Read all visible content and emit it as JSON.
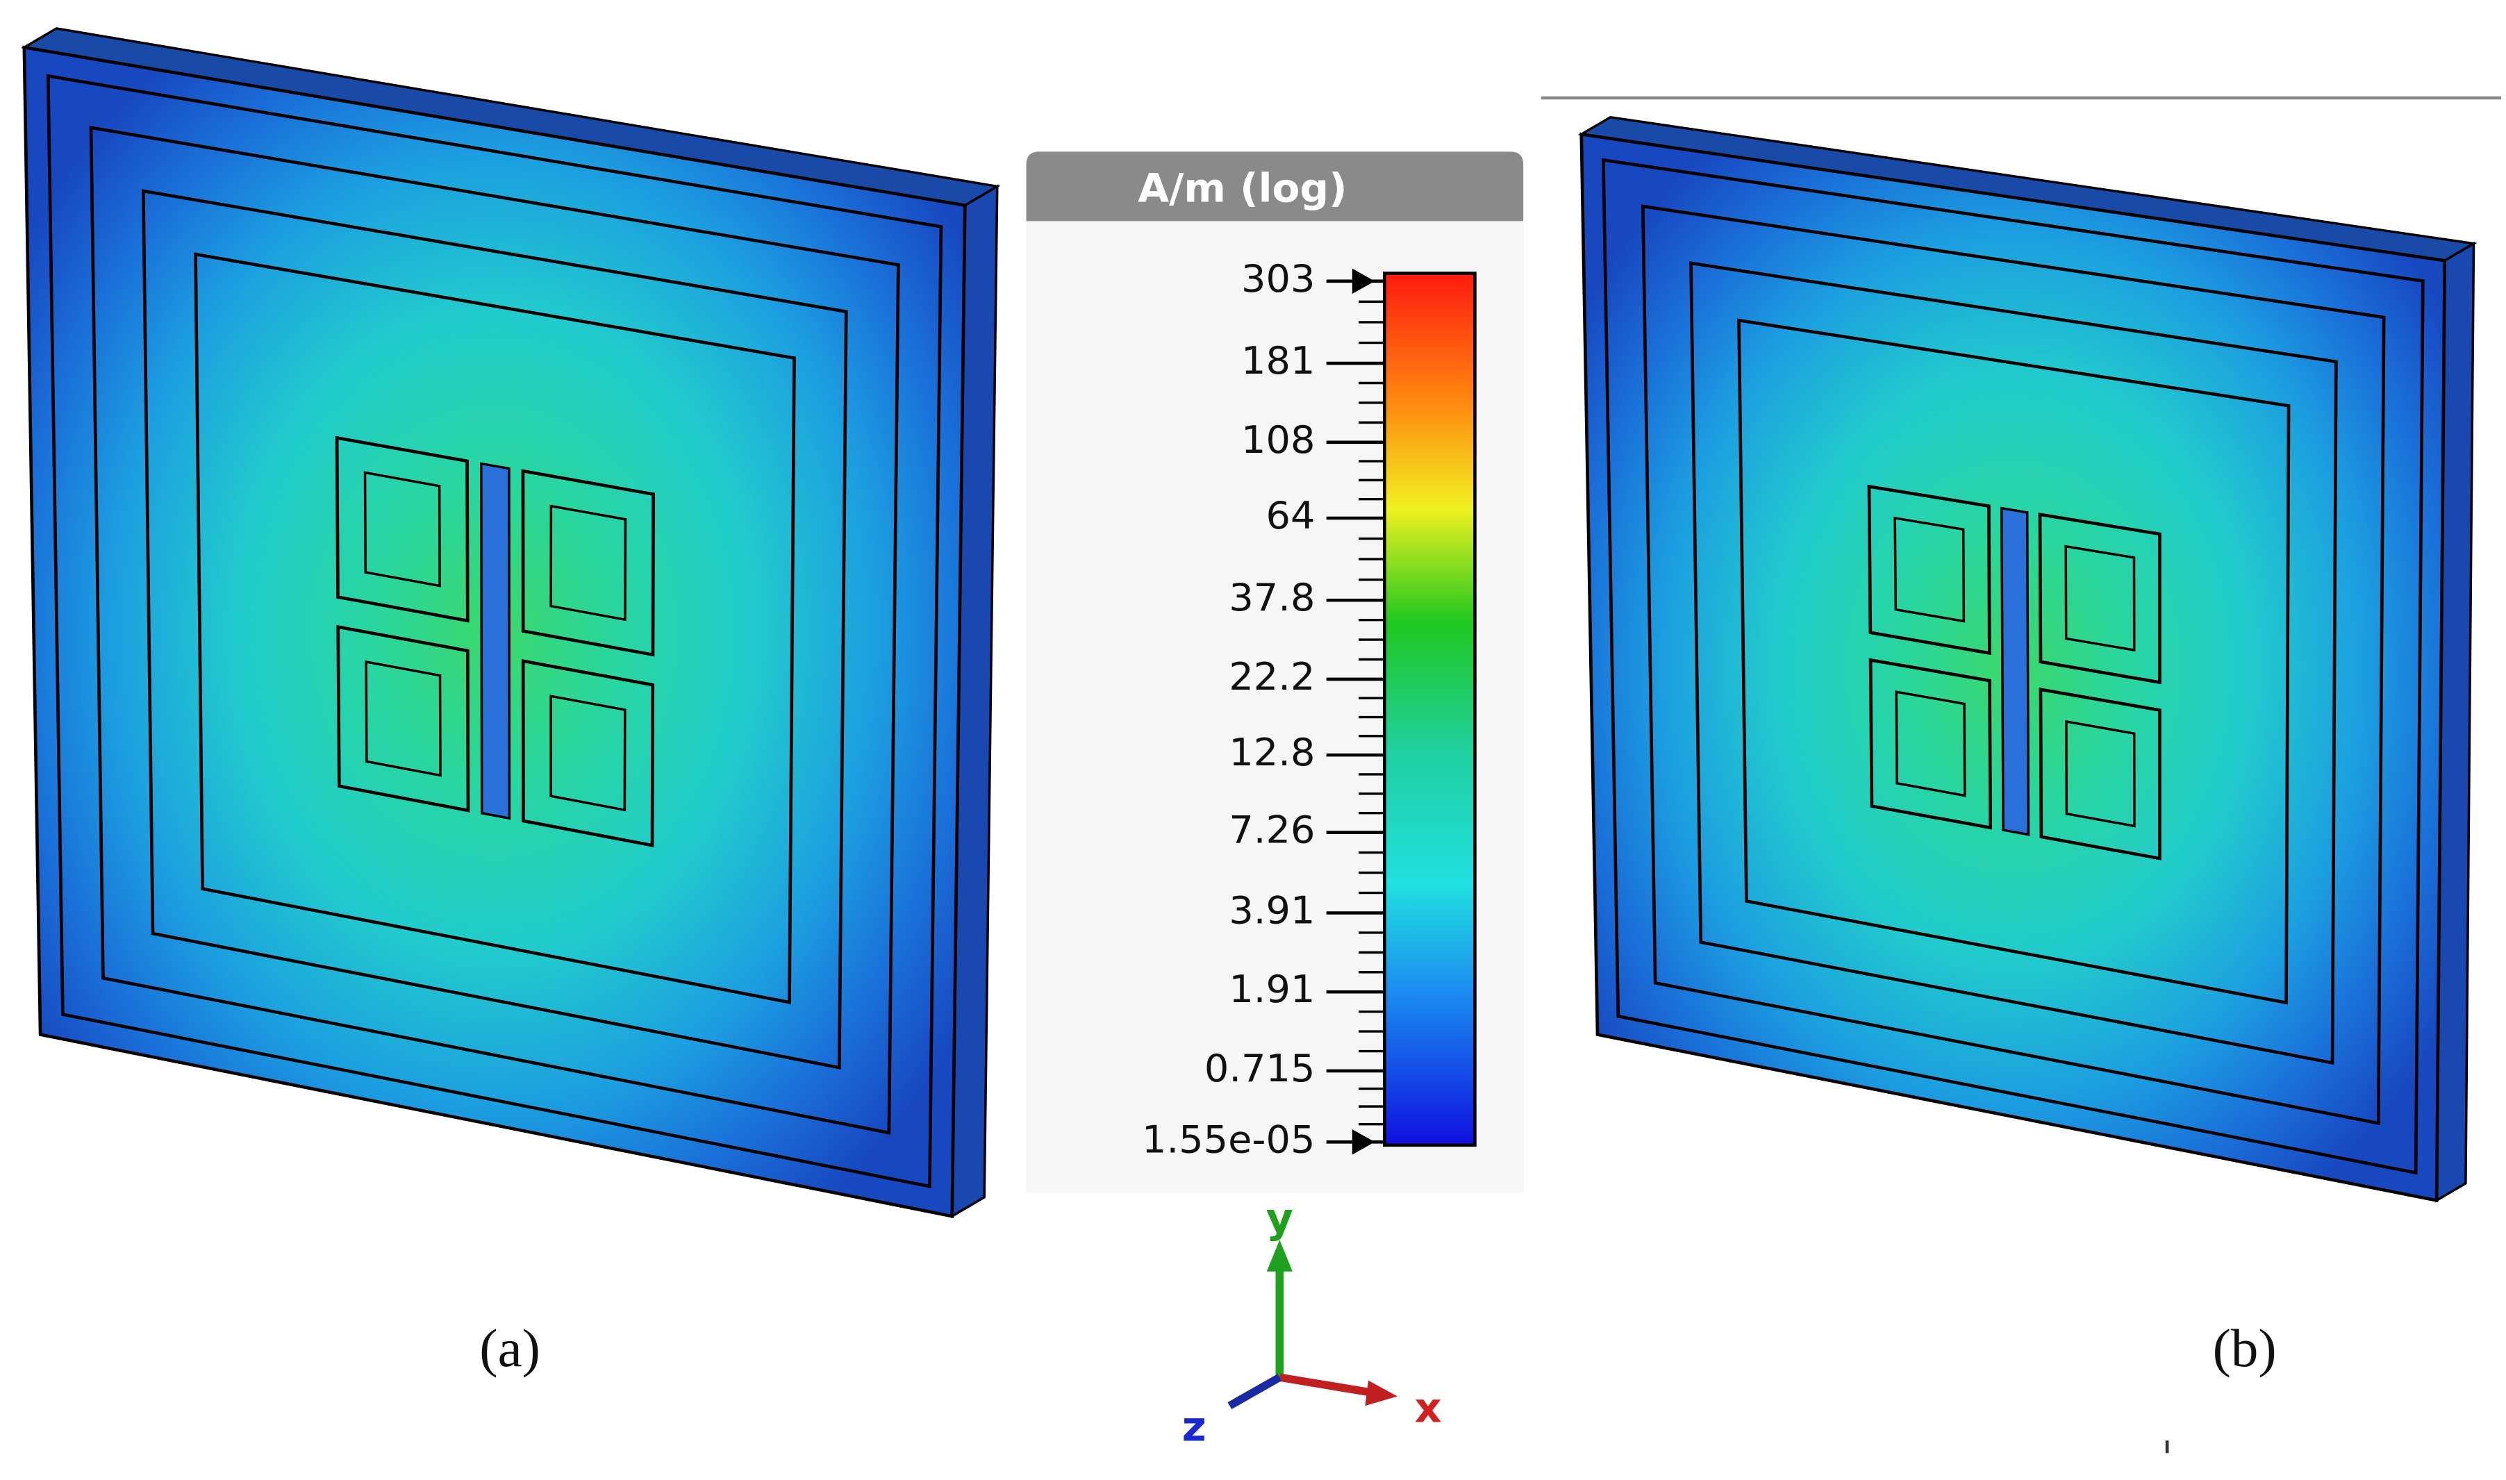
{
  "colorbar": {
    "title": "A/m (log)",
    "ticks": [
      "303",
      "181",
      "108",
      "64",
      "37.8",
      "22.2",
      "12.8",
      "7.26",
      "3.91",
      "1.91",
      "0.715",
      "1.55e-05"
    ]
  },
  "axes": {
    "y": "y",
    "x": "x",
    "z": "z"
  },
  "panels": [
    {
      "label": "(a)"
    },
    {
      "label": "(b)"
    }
  ]
}
